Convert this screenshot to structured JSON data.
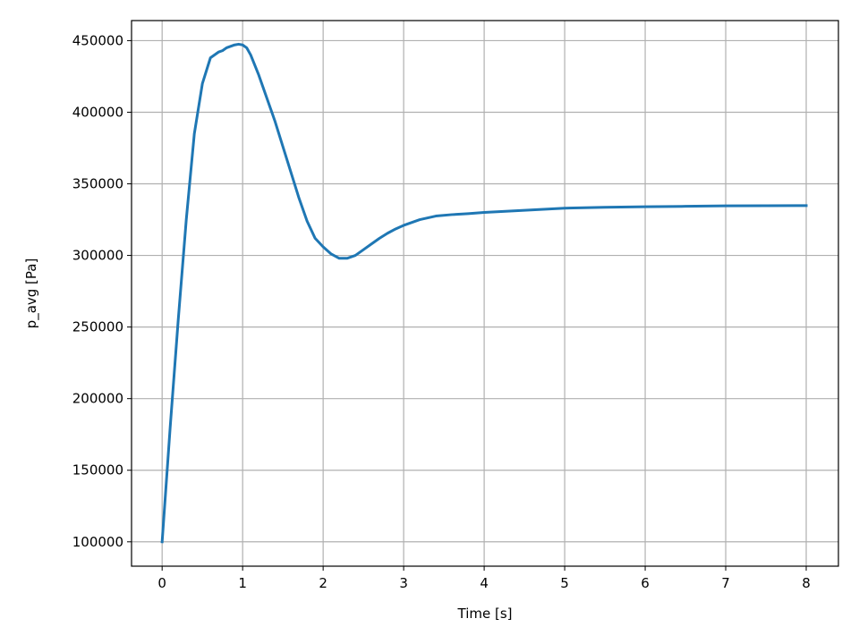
{
  "chart_data": {
    "type": "line",
    "title": "",
    "xlabel": "Time [s]",
    "ylabel": "p_avg [Pa]",
    "xlim": [
      -0.38,
      8.4
    ],
    "ylim": [
      83000,
      464000
    ],
    "grid": true,
    "xticks": [
      0,
      1,
      2,
      3,
      4,
      5,
      6,
      7,
      8
    ],
    "xtick_labels": [
      "0",
      "1",
      "2",
      "3",
      "4",
      "5",
      "6",
      "7",
      "8"
    ],
    "yticks": [
      100000,
      150000,
      200000,
      250000,
      300000,
      350000,
      400000,
      450000
    ],
    "ytick_labels": [
      "100000",
      "150000",
      "200000",
      "250000",
      "300000",
      "350000",
      "400000",
      "450000"
    ],
    "color": "#1f77b4",
    "series": [
      {
        "x": [
          0,
          0.1,
          0.2,
          0.3,
          0.4,
          0.5,
          0.6,
          0.7,
          0.75,
          0.8,
          0.9,
          0.95,
          1.0,
          1.05,
          1.1,
          1.2,
          1.3,
          1.4,
          1.5,
          1.6,
          1.7,
          1.8,
          1.9,
          2.0,
          2.1,
          2.2,
          2.3,
          2.4,
          2.5,
          2.6,
          2.7,
          2.8,
          2.9,
          3.0,
          3.2,
          3.4,
          3.6,
          3.8,
          4.0,
          4.5,
          5.0,
          5.5,
          6.0,
          6.5,
          7.0,
          7.5,
          8.0
        ],
        "y": [
          100000,
          180000,
          255000,
          325000,
          385000,
          420000,
          438000,
          442000,
          443000,
          445000,
          447000,
          447500,
          447000,
          445000,
          440000,
          426000,
          410000,
          394000,
          376000,
          358000,
          340000,
          324000,
          312000,
          306000,
          301000,
          298000,
          298000,
          300000,
          304000,
          308000,
          312000,
          315500,
          318500,
          321000,
          325000,
          327500,
          328500,
          329200,
          330000,
          331500,
          333000,
          333600,
          334000,
          334300,
          334600,
          334700,
          334800
        ]
      }
    ]
  }
}
